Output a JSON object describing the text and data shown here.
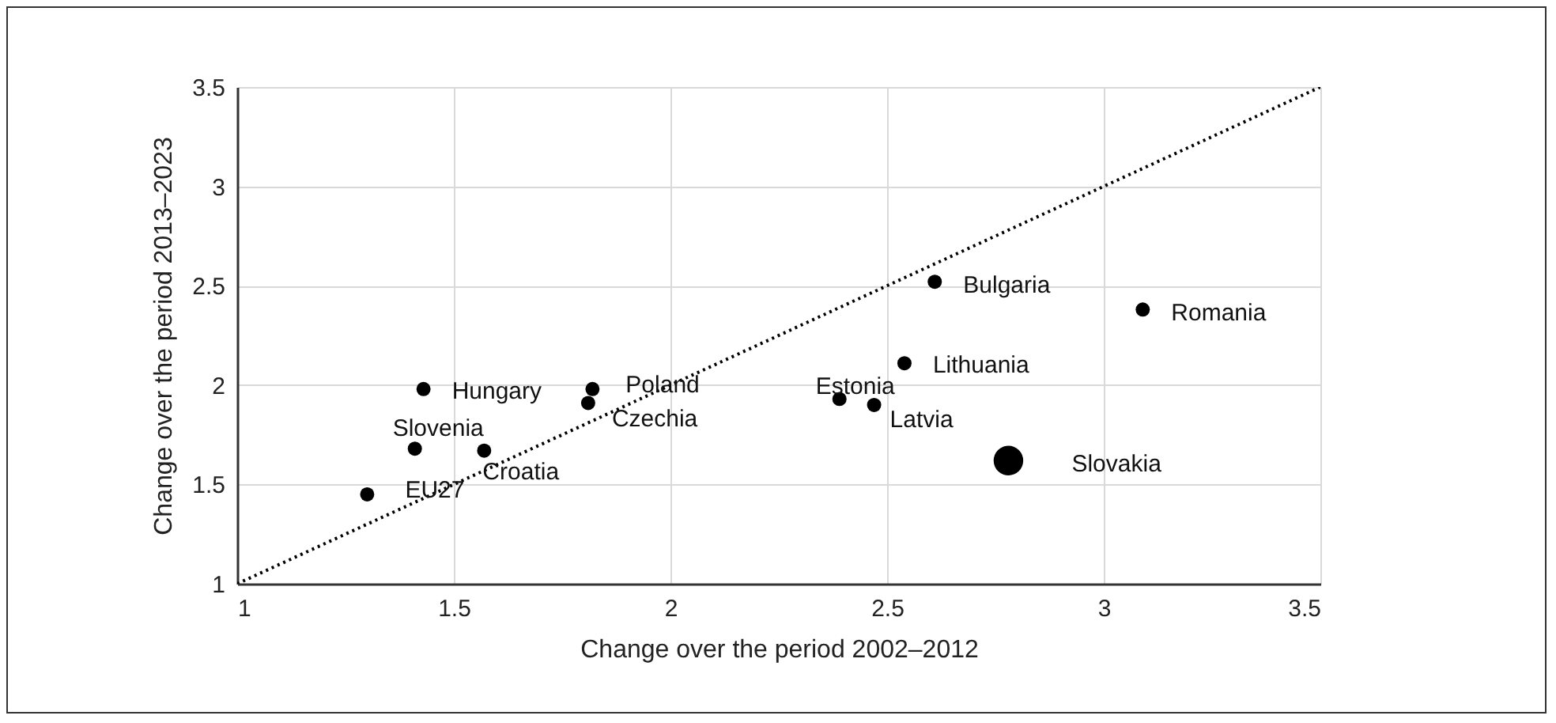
{
  "chart_data": {
    "type": "bubble",
    "xlabel": "Change  over the period 2002–2012",
    "ylabel": "Change over the period 2013–2023",
    "xlim": [
      1,
      3.5
    ],
    "xticks": [
      1,
      1.5,
      2,
      2.5,
      3,
      3.5
    ],
    "ylim": [
      1,
      3.5
    ],
    "yticks": [
      1,
      1.5,
      2,
      2.5,
      3,
      3.5
    ],
    "grid": true,
    "legend": false,
    "marker": "circle",
    "series": [
      {
        "type": "bubble",
        "color": "#000000",
        "x": [
          1.3,
          1.43,
          1.41,
          1.57,
          1.82,
          1.81,
          2.61,
          3.09,
          2.54,
          2.39,
          2.47,
          2.78
        ],
        "values": [
          1.45,
          1.98,
          1.68,
          1.67,
          1.98,
          1.91,
          2.52,
          2.38,
          2.11,
          1.93,
          1.9,
          1.62
        ],
        "sizes": [
          0.23,
          0.23,
          0.23,
          0.23,
          0.23,
          0.23,
          0.23,
          0.23,
          0.23,
          0.23,
          0.23,
          1
        ]
      },
      {
        "type": "line",
        "color": "#000000",
        "line_style": "dotted",
        "marker": "none",
        "x": [
          1,
          3.5
        ],
        "values": [
          1,
          3.5
        ]
      }
    ],
    "annotations": [
      {
        "text": "EU27",
        "x": 1.3,
        "y": 1.45
      },
      {
        "text": "Hungary",
        "x": 1.43,
        "y": 1.98
      },
      {
        "text": "Slovenia",
        "x": 1.41,
        "y": 1.68
      },
      {
        "text": "Croatia",
        "x": 1.57,
        "y": 1.67
      },
      {
        "text": "Poland",
        "x": 1.82,
        "y": 1.98
      },
      {
        "text": "Czechia",
        "x": 1.81,
        "y": 1.91
      },
      {
        "text": "Bulgaria",
        "x": 2.61,
        "y": 2.52
      },
      {
        "text": "Romania",
        "x": 3.09,
        "y": 2.38
      },
      {
        "text": "Lithuania",
        "x": 2.54,
        "y": 2.11
      },
      {
        "text": "Estonia",
        "x": 2.39,
        "y": 1.93
      },
      {
        "text": "Latvia",
        "x": 2.47,
        "y": 1.9
      },
      {
        "text": "Slovakia",
        "x": 2.78,
        "y": 1.62
      }
    ]
  }
}
